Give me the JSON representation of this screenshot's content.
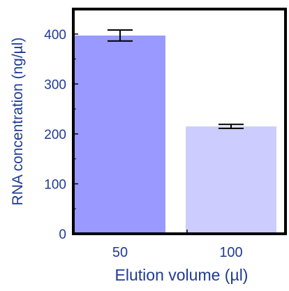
{
  "chart_data": {
    "type": "bar",
    "categories": [
      "50",
      "100"
    ],
    "values": [
      397,
      215
    ],
    "error": [
      11,
      4
    ],
    "bar_colors": [
      "#9999ff",
      "#ccccff"
    ],
    "xlabel": "Elution volume (µl)",
    "ylabel": "RNA concentration (ng/µl)",
    "ylim": [
      0,
      450
    ],
    "yticks": [
      0,
      100,
      200,
      300,
      400
    ],
    "grid": false,
    "legend": "none"
  },
  "colors": {
    "axis_text": "#1f3a93",
    "frame": "#000000",
    "error_bar": "#000000"
  }
}
